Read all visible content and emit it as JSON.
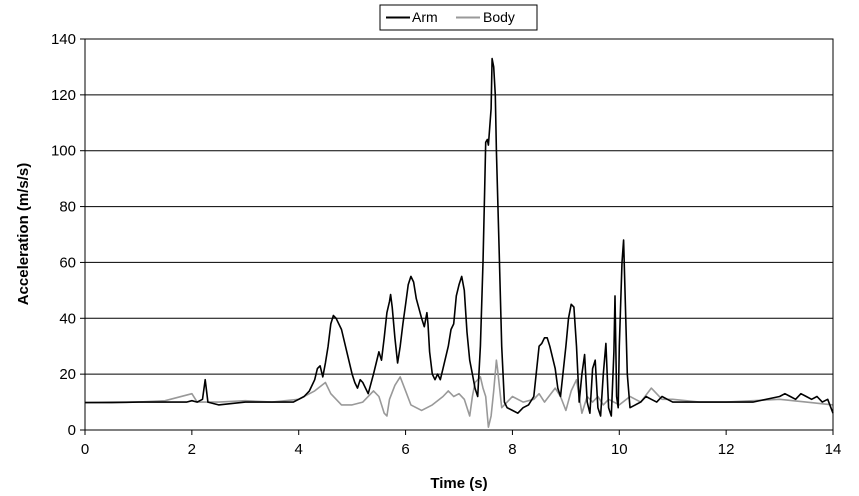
{
  "chart_data": {
    "type": "line",
    "xlabel": "Time (s)",
    "ylabel": "Acceleration (m/s/s)",
    "xlim": [
      0,
      14
    ],
    "ylim": [
      0,
      140
    ],
    "x_ticks": [
      "0",
      "2",
      "4",
      "6",
      "8",
      "10",
      "12",
      "14"
    ],
    "y_ticks": [
      "0",
      "20",
      "40",
      "60",
      "80",
      "100",
      "120",
      "140"
    ],
    "grid": "horizontal",
    "legend_position": "top-center",
    "series": [
      {
        "name": "Arm",
        "color": "#000000",
        "points": [
          [
            0,
            9.8
          ],
          [
            0.5,
            9.8
          ],
          [
            1,
            10
          ],
          [
            1.5,
            10
          ],
          [
            1.9,
            10
          ],
          [
            2,
            10.5
          ],
          [
            2.1,
            10
          ],
          [
            2.2,
            11
          ],
          [
            2.25,
            18
          ],
          [
            2.3,
            10
          ],
          [
            2.5,
            9
          ],
          [
            3,
            10
          ],
          [
            3.5,
            10
          ],
          [
            3.9,
            10
          ],
          [
            4,
            11
          ],
          [
            4.1,
            12
          ],
          [
            4.2,
            14
          ],
          [
            4.3,
            18
          ],
          [
            4.35,
            22
          ],
          [
            4.4,
            23
          ],
          [
            4.45,
            19
          ],
          [
            4.5,
            24
          ],
          [
            4.55,
            30
          ],
          [
            4.6,
            38
          ],
          [
            4.65,
            41
          ],
          [
            4.7,
            40
          ],
          [
            4.8,
            36
          ],
          [
            4.9,
            28
          ],
          [
            5,
            20
          ],
          [
            5.05,
            17
          ],
          [
            5.1,
            15
          ],
          [
            5.15,
            18
          ],
          [
            5.2,
            17
          ],
          [
            5.3,
            13
          ],
          [
            5.4,
            20
          ],
          [
            5.45,
            24
          ],
          [
            5.5,
            28
          ],
          [
            5.55,
            25
          ],
          [
            5.6,
            33
          ],
          [
            5.65,
            42
          ],
          [
            5.7,
            46
          ],
          [
            5.72,
            48.5
          ],
          [
            5.75,
            44
          ],
          [
            5.8,
            33
          ],
          [
            5.85,
            24
          ],
          [
            5.9,
            30
          ],
          [
            5.95,
            38
          ],
          [
            6,
            45
          ],
          [
            6.05,
            52
          ],
          [
            6.1,
            55
          ],
          [
            6.15,
            53
          ],
          [
            6.2,
            47
          ],
          [
            6.3,
            40
          ],
          [
            6.35,
            37
          ],
          [
            6.4,
            42
          ],
          [
            6.42,
            38
          ],
          [
            6.45,
            28
          ],
          [
            6.5,
            20
          ],
          [
            6.55,
            18
          ],
          [
            6.6,
            20
          ],
          [
            6.65,
            18
          ],
          [
            6.7,
            22
          ],
          [
            6.8,
            30
          ],
          [
            6.85,
            36
          ],
          [
            6.9,
            38
          ],
          [
            6.95,
            48
          ],
          [
            7,
            52
          ],
          [
            7.05,
            55
          ],
          [
            7.1,
            50
          ],
          [
            7.15,
            35
          ],
          [
            7.2,
            25
          ],
          [
            7.25,
            20
          ],
          [
            7.3,
            15
          ],
          [
            7.35,
            12
          ],
          [
            7.4,
            30
          ],
          [
            7.45,
            60
          ],
          [
            7.48,
            85
          ],
          [
            7.5,
            103
          ],
          [
            7.53,
            104
          ],
          [
            7.55,
            102
          ],
          [
            7.6,
            115
          ],
          [
            7.62,
            133
          ],
          [
            7.65,
            130
          ],
          [
            7.68,
            120
          ],
          [
            7.7,
            100
          ],
          [
            7.75,
            65
          ],
          [
            7.8,
            30
          ],
          [
            7.85,
            10
          ],
          [
            7.9,
            8
          ],
          [
            8,
            7
          ],
          [
            8.1,
            6
          ],
          [
            8.2,
            8
          ],
          [
            8.3,
            9
          ],
          [
            8.4,
            12
          ],
          [
            8.5,
            30
          ],
          [
            8.55,
            31
          ],
          [
            8.6,
            33
          ],
          [
            8.65,
            33
          ],
          [
            8.7,
            30
          ],
          [
            8.8,
            22
          ],
          [
            8.85,
            15
          ],
          [
            8.9,
            12
          ],
          [
            9,
            30
          ],
          [
            9.05,
            40
          ],
          [
            9.1,
            45
          ],
          [
            9.15,
            44
          ],
          [
            9.2,
            30
          ],
          [
            9.25,
            10
          ],
          [
            9.3,
            20
          ],
          [
            9.35,
            27
          ],
          [
            9.4,
            10
          ],
          [
            9.45,
            6
          ],
          [
            9.5,
            22
          ],
          [
            9.55,
            25
          ],
          [
            9.6,
            8
          ],
          [
            9.65,
            5
          ],
          [
            9.7,
            20
          ],
          [
            9.75,
            31
          ],
          [
            9.8,
            8
          ],
          [
            9.85,
            5
          ],
          [
            9.9,
            28
          ],
          [
            9.92,
            48
          ],
          [
            9.95,
            12
          ],
          [
            9.98,
            8
          ],
          [
            10,
            30
          ],
          [
            10.05,
            60
          ],
          [
            10.08,
            68
          ],
          [
            10.1,
            55
          ],
          [
            10.15,
            20
          ],
          [
            10.2,
            8
          ],
          [
            10.3,
            9
          ],
          [
            10.4,
            10
          ],
          [
            10.5,
            12
          ],
          [
            10.6,
            11
          ],
          [
            10.7,
            10
          ],
          [
            10.8,
            12
          ],
          [
            10.9,
            11
          ],
          [
            11,
            10
          ],
          [
            11.5,
            10
          ],
          [
            12,
            10
          ],
          [
            12.5,
            10
          ],
          [
            13,
            12
          ],
          [
            13.1,
            13
          ],
          [
            13.2,
            12
          ],
          [
            13.3,
            11
          ],
          [
            13.4,
            13
          ],
          [
            13.5,
            12
          ],
          [
            13.6,
            11
          ],
          [
            13.7,
            12
          ],
          [
            13.8,
            10
          ],
          [
            13.9,
            11
          ],
          [
            14,
            6
          ]
        ]
      },
      {
        "name": "Body",
        "color": "#999999",
        "points": [
          [
            0,
            9.8
          ],
          [
            0.5,
            10
          ],
          [
            1,
            10
          ],
          [
            1.5,
            10.5
          ],
          [
            2,
            13
          ],
          [
            2.1,
            10
          ],
          [
            2.5,
            10
          ],
          [
            3,
            10.5
          ],
          [
            3.5,
            10
          ],
          [
            4,
            11
          ],
          [
            4.3,
            14
          ],
          [
            4.5,
            17
          ],
          [
            4.6,
            13
          ],
          [
            4.8,
            9
          ],
          [
            5,
            9
          ],
          [
            5.2,
            10
          ],
          [
            5.4,
            14
          ],
          [
            5.5,
            12
          ],
          [
            5.6,
            6
          ],
          [
            5.65,
            5
          ],
          [
            5.7,
            11
          ],
          [
            5.8,
            16
          ],
          [
            5.9,
            19
          ],
          [
            6,
            14
          ],
          [
            6.1,
            9
          ],
          [
            6.3,
            7
          ],
          [
            6.5,
            9
          ],
          [
            6.7,
            12
          ],
          [
            6.8,
            14
          ],
          [
            6.9,
            12
          ],
          [
            7,
            13
          ],
          [
            7.1,
            11
          ],
          [
            7.2,
            5
          ],
          [
            7.25,
            12
          ],
          [
            7.3,
            17
          ],
          [
            7.4,
            19
          ],
          [
            7.45,
            15
          ],
          [
            7.5,
            12
          ],
          [
            7.55,
            1
          ],
          [
            7.6,
            5
          ],
          [
            7.65,
            14
          ],
          [
            7.7,
            25
          ],
          [
            7.72,
            22
          ],
          [
            7.8,
            8
          ],
          [
            7.9,
            10
          ],
          [
            8,
            12
          ],
          [
            8.2,
            10
          ],
          [
            8.4,
            11
          ],
          [
            8.5,
            13
          ],
          [
            8.6,
            10
          ],
          [
            8.8,
            15
          ],
          [
            8.9,
            12
          ],
          [
            9,
            7
          ],
          [
            9.1,
            14
          ],
          [
            9.2,
            18
          ],
          [
            9.3,
            6
          ],
          [
            9.4,
            12
          ],
          [
            9.5,
            10
          ],
          [
            9.6,
            12
          ],
          [
            9.7,
            9
          ],
          [
            9.8,
            11
          ],
          [
            10,
            9
          ],
          [
            10.2,
            12
          ],
          [
            10.4,
            10
          ],
          [
            10.6,
            15
          ],
          [
            10.8,
            11
          ],
          [
            11,
            11
          ],
          [
            11.5,
            10
          ],
          [
            12,
            10
          ],
          [
            12.5,
            10.5
          ],
          [
            13,
            11
          ],
          [
            13.5,
            10
          ],
          [
            14,
            9
          ]
        ]
      }
    ]
  }
}
